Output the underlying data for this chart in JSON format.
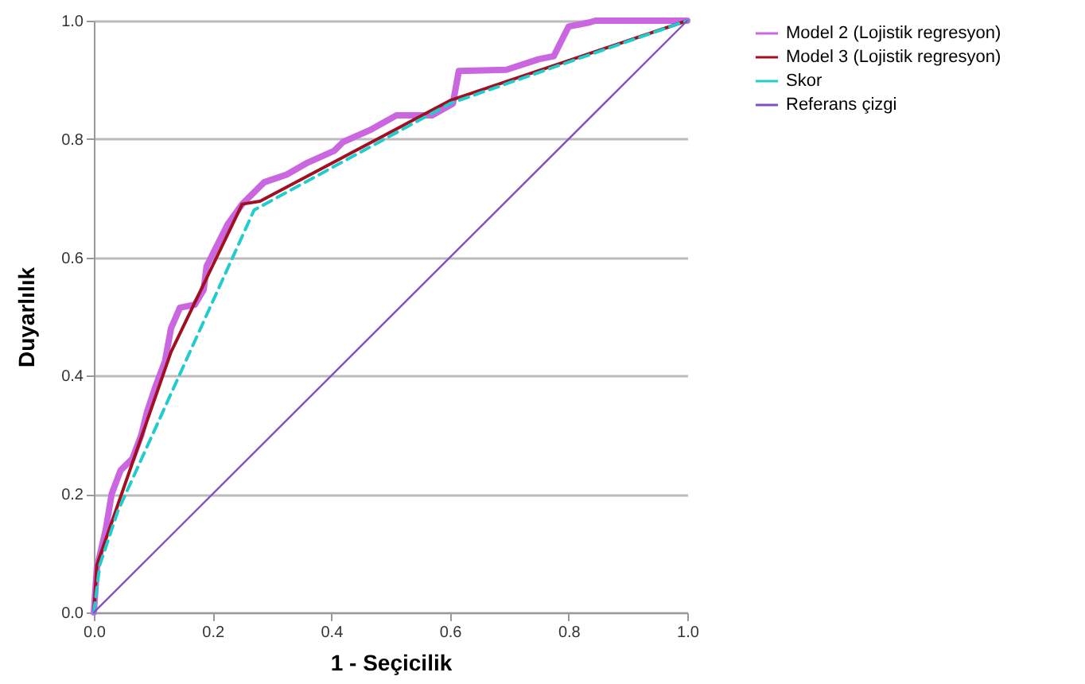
{
  "chart_data": {
    "type": "line",
    "xlabel": "1 - Seçicilik",
    "ylabel": "Duyarlılık",
    "xlim": [
      0,
      1
    ],
    "ylim": [
      0,
      1
    ],
    "xticks": [
      {
        "value": 0,
        "label": "0.0"
      },
      {
        "value": 0.2,
        "label": "0.2"
      },
      {
        "value": 0.4,
        "label": "0.4"
      },
      {
        "value": 0.6,
        "label": "0.6"
      },
      {
        "value": 0.8,
        "label": "0.8"
      },
      {
        "value": 1,
        "label": "1.0"
      }
    ],
    "yticks": [
      {
        "value": 0,
        "label": "0.0"
      },
      {
        "value": 0.2,
        "label": "0.2"
      },
      {
        "value": 0.4,
        "label": "0.4"
      },
      {
        "value": 0.6,
        "label": "0.6"
      },
      {
        "value": 0.8,
        "label": "0.8"
      },
      {
        "value": 1,
        "label": "1.0"
      }
    ],
    "grid": "y",
    "legend": "right",
    "marker": "none",
    "series": [
      {
        "name": "Model 2 (Lojistik regresyon)",
        "color": "#c966e0",
        "line_style": "solid",
        "x": [
          0,
          0.005,
          0.02,
          0.03,
          0.045,
          0.065,
          0.08,
          0.09,
          0.105,
          0.12,
          0.13,
          0.145,
          0.17,
          0.185,
          0.19,
          0.21,
          0.225,
          0.25,
          0.287,
          0.325,
          0.36,
          0.405,
          0.42,
          0.465,
          0.51,
          0.57,
          0.605,
          0.615,
          0.695,
          0.75,
          0.775,
          0.79,
          0.8,
          0.835,
          0.845,
          1
        ],
        "values": [
          0,
          0.075,
          0.14,
          0.2,
          0.24,
          0.26,
          0.3,
          0.34,
          0.385,
          0.425,
          0.48,
          0.515,
          0.52,
          0.545,
          0.585,
          0.625,
          0.655,
          0.69,
          0.727,
          0.74,
          0.76,
          0.78,
          0.795,
          0.815,
          0.84,
          0.84,
          0.86,
          0.915,
          0.917,
          0.935,
          0.94,
          0.97,
          0.99,
          0.997,
          1,
          1
        ]
      },
      {
        "name": "Model 3 (Lojistik regresyon)",
        "color": "#a01020",
        "line_style": "solid",
        "x": [
          0,
          0.005,
          0.13,
          0.25,
          0.28,
          0.6,
          1
        ],
        "values": [
          0,
          0.08,
          0.44,
          0.69,
          0.695,
          0.865,
          1
        ]
      },
      {
        "name": "Skor",
        "color": "#22cccc",
        "line_style": "dashed",
        "x": [
          0,
          0.01,
          0.04,
          0.27,
          0.6,
          1
        ],
        "values": [
          0,
          0.08,
          0.17,
          0.68,
          0.86,
          1
        ]
      },
      {
        "name": "Referans çizgi",
        "color": "#8050c0",
        "line_style": "solid",
        "x": [
          0,
          1
        ],
        "values": [
          0,
          1
        ]
      }
    ]
  }
}
